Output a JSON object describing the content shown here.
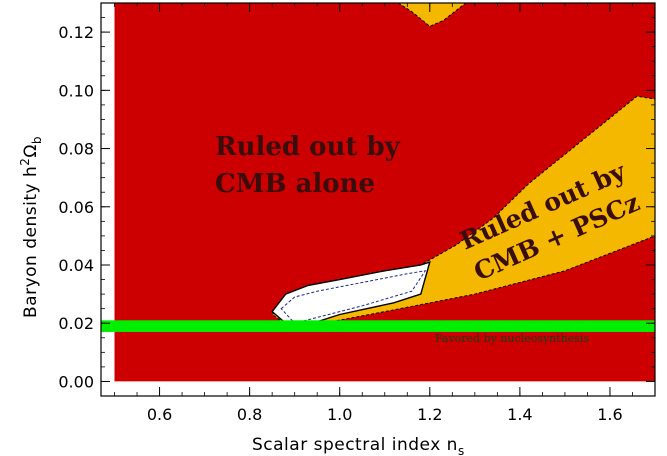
{
  "chart_data": {
    "type": "area",
    "xlabel": "Scalar spectral index n",
    "xlabel_sub": "s",
    "ylabel_main": "Baryon density h",
    "ylabel_sup": "2",
    "ylabel_omega": "Ω",
    "ylabel_sub": "b",
    "xlim": [
      0.47,
      1.7
    ],
    "ylim": [
      -0.005,
      0.13
    ],
    "xticks": [
      "0.6",
      "0.8",
      "1.0",
      "1.2",
      "1.4",
      "1.6"
    ],
    "xtick_values": [
      0.6,
      0.8,
      1.0,
      1.2,
      1.4,
      1.6
    ],
    "yticks": [
      "0.00",
      "0.02",
      "0.04",
      "0.06",
      "0.08",
      "0.10",
      "0.12"
    ],
    "ytick_values": [
      0.0,
      0.02,
      0.04,
      0.06,
      0.08,
      0.1,
      0.12
    ],
    "colors": {
      "cmb_excluded": "#cc0000",
      "pscz_excluded": "#f5b800",
      "allowed": "#ffffff",
      "nucleosynthesis": "#00ee00"
    },
    "regions": [
      {
        "label_lines": [
          "Ruled out by",
          "CMB alone"
        ],
        "color": "cmb_excluded",
        "polygon": [
          [
            0.5,
            0.0
          ],
          [
            1.7,
            0.0
          ],
          [
            1.7,
            0.13
          ],
          [
            0.5,
            0.13
          ]
        ]
      },
      {
        "label_lines": [
          "Ruled out by",
          "CMB + PSCz"
        ],
        "color": "pscz_excluded",
        "polygon": [
          [
            0.895,
            0.018
          ],
          [
            1.1,
            0.024
          ],
          [
            1.3,
            0.03
          ],
          [
            1.5,
            0.038
          ],
          [
            1.7,
            0.05
          ],
          [
            1.7,
            0.097
          ],
          [
            1.66,
            0.098
          ],
          [
            1.58,
            0.088
          ],
          [
            1.5,
            0.078
          ],
          [
            1.42,
            0.068
          ],
          [
            1.34,
            0.056
          ],
          [
            1.26,
            0.047
          ],
          [
            1.18,
            0.04
          ],
          [
            1.05,
            0.036
          ],
          [
            0.96,
            0.032
          ],
          [
            0.88,
            0.026
          ],
          [
            0.85,
            0.023
          ]
        ]
      },
      {
        "label_lines": [],
        "color": "pscz_excluded",
        "polygon": [
          [
            1.13,
            0.13
          ],
          [
            1.16,
            0.127
          ],
          [
            1.2,
            0.122
          ],
          [
            1.23,
            0.124
          ],
          [
            1.28,
            0.13
          ]
        ]
      },
      {
        "label_lines": [],
        "color": "allowed",
        "polygon": [
          [
            0.85,
            0.024
          ],
          [
            0.88,
            0.03
          ],
          [
            0.93,
            0.033
          ],
          [
            1.0,
            0.035
          ],
          [
            1.1,
            0.038
          ],
          [
            1.18,
            0.04
          ],
          [
            1.2,
            0.041
          ],
          [
            1.18,
            0.03
          ],
          [
            1.12,
            0.027
          ],
          [
            1.0,
            0.023
          ],
          [
            0.94,
            0.02
          ],
          [
            0.895,
            0.018
          ]
        ]
      }
    ],
    "band": {
      "label": "Favored by nucleosynthesis",
      "y_range": [
        0.017,
        0.021
      ],
      "color": "nucleosynthesis"
    }
  }
}
